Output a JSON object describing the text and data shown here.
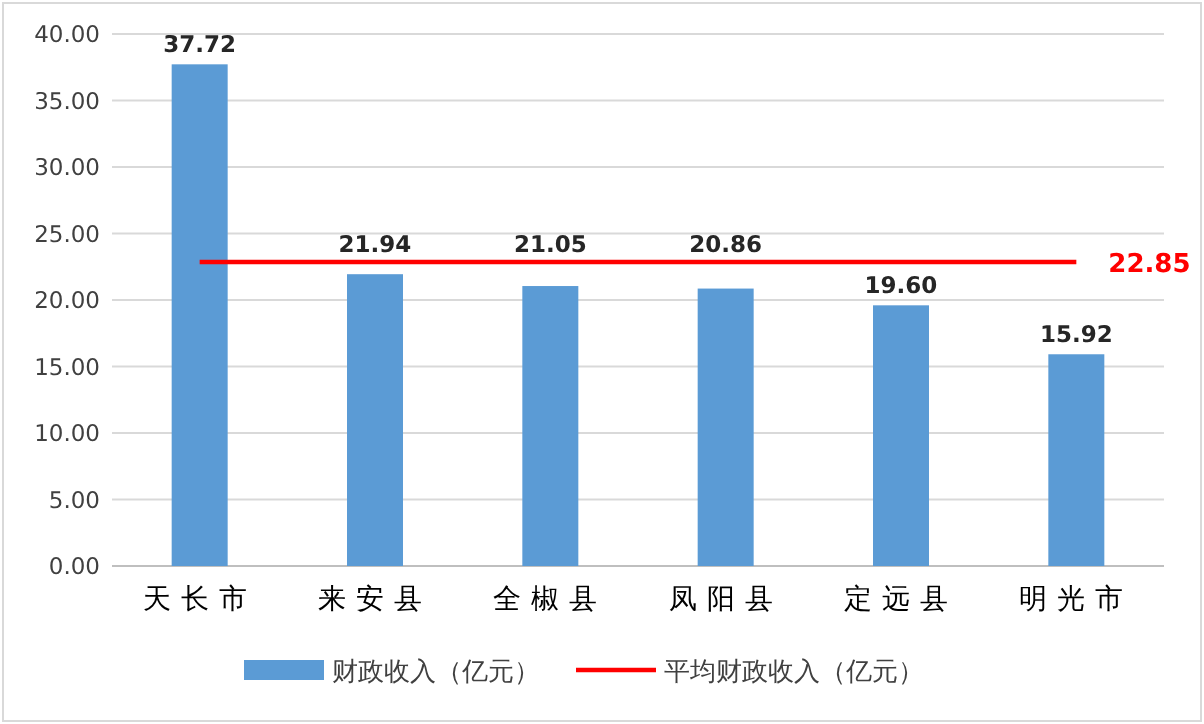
{
  "chart_data": {
    "type": "bar",
    "categories": [
      "天长市",
      "来安县",
      "全椒县",
      "凤阳县",
      "定远县",
      "明光市"
    ],
    "series": [
      {
        "name": "财政收入（亿元）",
        "color": "#5b9bd5",
        "values": [
          37.72,
          21.94,
          21.05,
          20.86,
          19.6,
          15.92
        ],
        "value_labels": [
          "37.72",
          "21.94",
          "21.05",
          "20.86",
          "19.60",
          "15.92"
        ]
      },
      {
        "name": "平均财政收入（亿元）",
        "type": "line",
        "color": "#ff0000",
        "values": [
          22.85,
          22.85,
          22.85,
          22.85,
          22.85,
          22.85
        ],
        "value_labels": [
          null,
          null,
          null,
          null,
          null,
          "22.85"
        ]
      }
    ],
    "ylim": [
      0,
      40
    ],
    "yticks": [
      {
        "value": 0,
        "label": "0.00"
      },
      {
        "value": 5,
        "label": "5.00"
      },
      {
        "value": 10,
        "label": "10.00"
      },
      {
        "value": 15,
        "label": "15.00"
      },
      {
        "value": 20,
        "label": "20.00"
      },
      {
        "value": 25,
        "label": "25.00"
      },
      {
        "value": 30,
        "label": "30.00"
      },
      {
        "value": 35,
        "label": "35.00"
      },
      {
        "value": 40,
        "label": "40.00"
      }
    ],
    "grid": "y",
    "legend": "bottom"
  }
}
